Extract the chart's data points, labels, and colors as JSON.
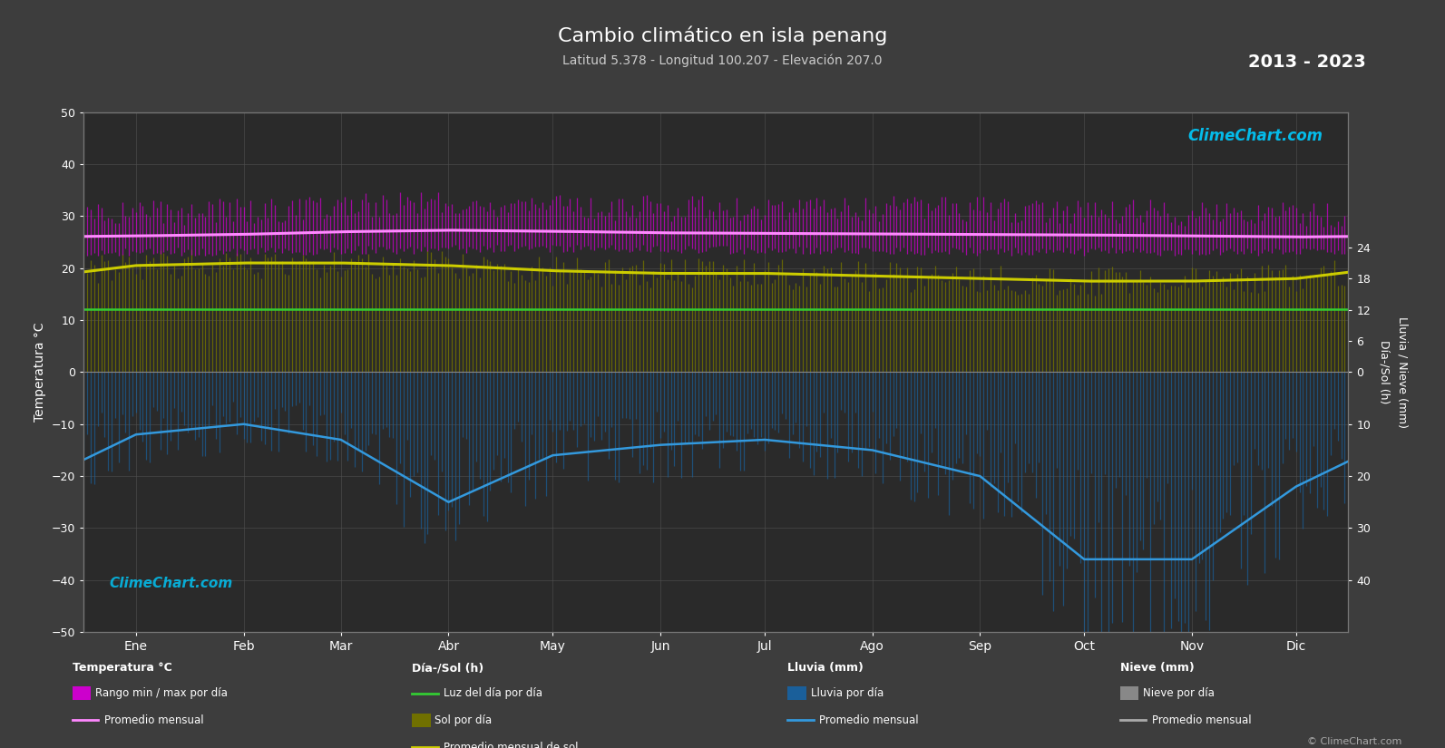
{
  "title": "Cambio climático en isla penang",
  "subtitle": "Latitud 5.378 - Longitud 100.207 - Elevación 207.0",
  "year_range": "2013 - 2023",
  "background_color": "#3d3d3d",
  "plot_bg_color": "#2a2a2a",
  "months": [
    "Ene",
    "Feb",
    "Mar",
    "Abr",
    "May",
    "Jun",
    "Jul",
    "Ago",
    "Sep",
    "Oct",
    "Nov",
    "Dic"
  ],
  "left_ylim": [
    -50,
    50
  ],
  "month_centers": [
    15,
    46,
    74,
    105,
    135,
    166,
    196,
    227,
    258,
    288,
    319,
    349
  ],
  "temp_min_monthly": [
    23.2,
    23.2,
    23.4,
    23.7,
    23.8,
    23.7,
    23.4,
    23.3,
    23.2,
    23.2,
    23.1,
    23.1
  ],
  "temp_max_monthly": [
    29.5,
    30.0,
    31.0,
    31.5,
    31.0,
    30.5,
    30.5,
    30.5,
    30.3,
    30.0,
    29.5,
    29.2
  ],
  "temp_avg_monthly": [
    26.2,
    26.5,
    27.0,
    27.3,
    27.1,
    26.8,
    26.7,
    26.6,
    26.5,
    26.4,
    26.2,
    26.0
  ],
  "sunlight_monthly": [
    12.1,
    12.1,
    12.1,
    12.1,
    12.1,
    12.1,
    12.1,
    12.1,
    12.1,
    12.1,
    12.1,
    12.1
  ],
  "sunhours_monthly": [
    20.5,
    21.0,
    21.0,
    20.5,
    19.5,
    19.0,
    19.0,
    18.5,
    18.0,
    17.5,
    17.5,
    18.0
  ],
  "rainfall_monthly_neg": [
    -12.0,
    -10.0,
    -13.0,
    -25.0,
    -16.0,
    -14.0,
    -13.0,
    -15.0,
    -20.0,
    -36.0,
    -36.0,
    -22.0
  ],
  "grid_color": "#555555",
  "temp_bar_color": "#cc00cc",
  "temp_line_color": "#ff88ff",
  "sun_line_color": "#33cc33",
  "sun_avg_color": "#cccc00",
  "sun_bar_color": "#707000",
  "rain_bar_color": "#1a5f9a",
  "rain_line_color": "#3399dd",
  "legend_items": {
    "temp_title": "Temperatura °C",
    "temp_range": "Rango min / max por día",
    "temp_avg": "Promedio mensual",
    "sun_title": "Día-/Sol (h)",
    "sun_day": "Luz del día por día",
    "sun_bar": "Sol por día",
    "sun_avg": "Promedio mensual de sol",
    "rain_title": "Lluvia (mm)",
    "rain_bar": "Lluvia por día",
    "rain_avg": "Promedio mensual",
    "snow_title": "Nieve (mm)",
    "snow_bar": "Nieve por día",
    "snow_avg": "Promedio mensual"
  }
}
